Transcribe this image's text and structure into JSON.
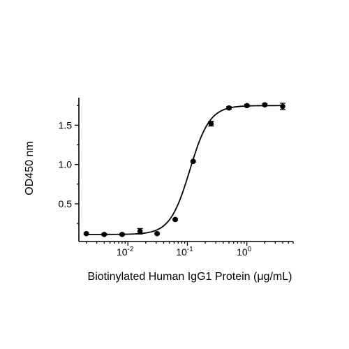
{
  "chart_data": {
    "type": "scatter",
    "title": "",
    "xlabel": "Biotinylated Human IgG1 Protein (μg/mL)",
    "ylabel": "OD450 nm",
    "x_scale": "log",
    "xlim": [
      0.0015,
      6
    ],
    "ylim": [
      0.02,
      1.85
    ],
    "x_ticks": [
      {
        "value": 0.01,
        "base": "10",
        "exp": "-2"
      },
      {
        "value": 0.1,
        "base": "10",
        "exp": "-1"
      },
      {
        "value": 1,
        "base": "10",
        "exp": "0"
      }
    ],
    "y_ticks": [
      {
        "value": 0.5,
        "label": "0.5"
      },
      {
        "value": 1.0,
        "label": "1.0"
      },
      {
        "value": 1.5,
        "label": "1.5"
      }
    ],
    "grid": false,
    "legend": "none",
    "fit_curve": {
      "model": "4PL",
      "bottom": 0.11,
      "top": 1.75,
      "ec50": 0.11,
      "hill": 2.6
    },
    "points": [
      {
        "x": 0.002,
        "y": 0.12,
        "err": 0.01
      },
      {
        "x": 0.004,
        "y": 0.11,
        "err": 0.01
      },
      {
        "x": 0.008,
        "y": 0.11,
        "err": 0.01
      },
      {
        "x": 0.016,
        "y": 0.15,
        "err": 0.035
      },
      {
        "x": 0.031,
        "y": 0.12,
        "err": 0.01
      },
      {
        "x": 0.0625,
        "y": 0.3,
        "err": 0.01
      },
      {
        "x": 0.125,
        "y": 1.04,
        "err": 0.01
      },
      {
        "x": 0.25,
        "y": 1.52,
        "err": 0.03
      },
      {
        "x": 0.5,
        "y": 1.72,
        "err": 0.015
      },
      {
        "x": 1.0,
        "y": 1.75,
        "err": 0.015
      },
      {
        "x": 2.0,
        "y": 1.76,
        "err": 0.015
      },
      {
        "x": 4.0,
        "y": 1.74,
        "err": 0.04
      }
    ]
  }
}
